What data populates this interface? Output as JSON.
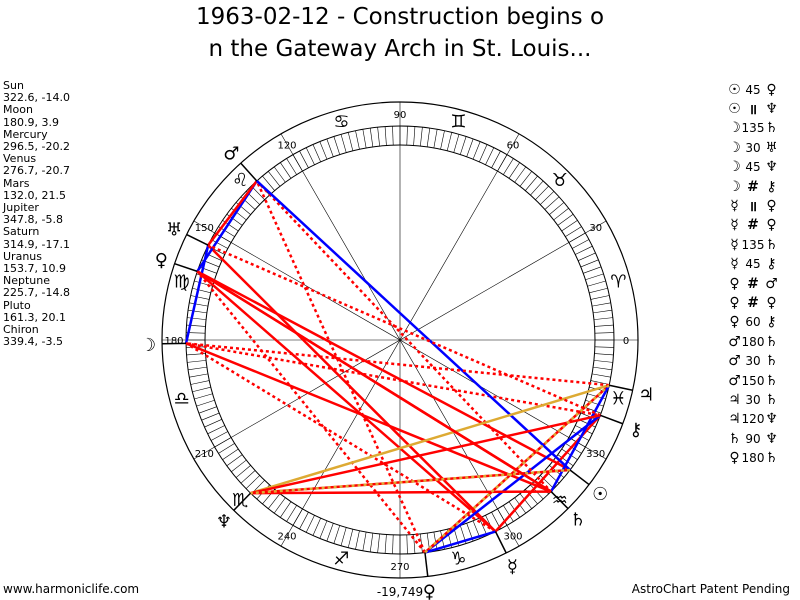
{
  "title": {
    "line1": "1963-02-12 - Construction begins o",
    "line2": "n the Gateway Arch in St. Louis..."
  },
  "planets": [
    {
      "name": "Sun",
      "position": "322.6, -14.0"
    },
    {
      "name": "Moon",
      "position": "180.9, 3.9"
    },
    {
      "name": "Mercury",
      "position": "296.5, -20.2"
    },
    {
      "name": "Venus",
      "position": "276.7, -20.7"
    },
    {
      "name": "Mars",
      "position": "132.0, 21.5"
    },
    {
      "name": "Jupiter",
      "position": "347.8, -5.8"
    },
    {
      "name": "Saturn",
      "position": "314.9, -17.1"
    },
    {
      "name": "Uranus",
      "position": "153.7, 10.9"
    },
    {
      "name": "Neptune",
      "position": "225.7, -14.8"
    },
    {
      "name": "Pluto",
      "position": "161.3, 20.1"
    },
    {
      "name": "Chiron",
      "position": "339.4, -3.5"
    }
  ],
  "aspects": [
    {
      "g1": "☉",
      "angle": "45",
      "g2": "♀"
    },
    {
      "g1": "☉",
      "angle": "॥",
      "g2": "♆"
    },
    {
      "g1": "☽",
      "angle": "135",
      "g2": "♄"
    },
    {
      "g1": "☽",
      "angle": "30",
      "g2": "♅"
    },
    {
      "g1": "☽",
      "angle": "45",
      "g2": "♆"
    },
    {
      "g1": "☽",
      "angle": "#",
      "g2": "⚷"
    },
    {
      "g1": "☿",
      "angle": "॥",
      "g2": "♀"
    },
    {
      "g1": "☿",
      "angle": "#",
      "g2": "♀"
    },
    {
      "g1": "☿",
      "angle": "135",
      "g2": "♄"
    },
    {
      "g1": "☿",
      "angle": "45",
      "g2": "⚷"
    },
    {
      "g1": "♀",
      "angle": "#",
      "g2": "♂"
    },
    {
      "g1": "♀",
      "angle": "#",
      "g2": "♀"
    },
    {
      "g1": "♀",
      "angle": "60",
      "g2": "⚷"
    },
    {
      "g1": "♂",
      "angle": "180",
      "g2": "♄"
    },
    {
      "g1": "♂",
      "angle": "30",
      "g2": "♄"
    },
    {
      "g1": "♂",
      "angle": "150",
      "g2": "♄"
    },
    {
      "g1": "♃",
      "angle": "30",
      "g2": "♄"
    },
    {
      "g1": "♃",
      "angle": "120",
      "g2": "♆"
    },
    {
      "g1": "♄",
      "angle": "90",
      "g2": "♆"
    },
    {
      "g1": "♀",
      "angle": "180",
      "g2": "♄"
    }
  ],
  "chart_data": {
    "type": "astrological-wheel",
    "degree_labels": [
      "0",
      "30",
      "60",
      "90",
      "120",
      "150",
      "180",
      "210",
      "240",
      "270",
      "300",
      "330"
    ],
    "bottom_value": "-19,749",
    "signs": [
      {
        "glyph": "♈",
        "longitude": 15
      },
      {
        "glyph": "♉",
        "longitude": 45
      },
      {
        "glyph": "♊",
        "longitude": 75
      },
      {
        "glyph": "♋",
        "longitude": 105
      },
      {
        "glyph": "♌",
        "longitude": 135
      },
      {
        "glyph": "♍",
        "longitude": 165
      },
      {
        "glyph": "♎",
        "longitude": 195
      },
      {
        "glyph": "♏",
        "longitude": 225
      },
      {
        "glyph": "♐",
        "longitude": 255
      },
      {
        "glyph": "♑",
        "longitude": 285
      },
      {
        "glyph": "♒",
        "longitude": 315
      },
      {
        "glyph": "♓",
        "longitude": 345
      }
    ],
    "bodies": [
      {
        "id": "sun",
        "glyph": "☉",
        "longitude": 322.6
      },
      {
        "id": "moon",
        "glyph": "☽",
        "longitude": 180.9
      },
      {
        "id": "mercury",
        "glyph": "☿",
        "longitude": 296.5
      },
      {
        "id": "venus",
        "glyph": "♀",
        "longitude": 276.7
      },
      {
        "id": "mars",
        "glyph": "♂",
        "longitude": 132.0
      },
      {
        "id": "jupiter",
        "glyph": "♃",
        "longitude": 347.8
      },
      {
        "id": "saturn",
        "glyph": "♄",
        "longitude": 314.9
      },
      {
        "id": "uranus",
        "glyph": "♅",
        "longitude": 153.7
      },
      {
        "id": "neptune",
        "glyph": "♆",
        "longitude": 225.7
      },
      {
        "id": "pluto",
        "glyph": "♀",
        "longitude": 161.3
      },
      {
        "id": "chiron",
        "glyph": "⚷",
        "longitude": 339.4
      }
    ],
    "aspect_lines": [
      {
        "from": "sun",
        "to": "pluto",
        "color": "#ff0000",
        "style": "solid"
      },
      {
        "from": "sun",
        "to": "neptune",
        "color": "#ff0000",
        "style": "solid"
      },
      {
        "from": "moon",
        "to": "saturn",
        "color": "#ff0000",
        "style": "solid"
      },
      {
        "from": "moon",
        "to": "uranus",
        "color": "#0000ff",
        "style": "solid"
      },
      {
        "from": "moon",
        "to": "chiron",
        "color": "#ff0000",
        "style": "dotted"
      },
      {
        "from": "mercury",
        "to": "uranus",
        "color": "#ff0000",
        "style": "solid"
      },
      {
        "from": "mercury",
        "to": "pluto",
        "color": "#ff0000",
        "style": "solid"
      },
      {
        "from": "mercury",
        "to": "chiron",
        "color": "#ff0000",
        "style": "solid"
      },
      {
        "from": "mercury",
        "to": "moon",
        "color": "#ff0000",
        "style": "dotted"
      },
      {
        "from": "venus",
        "to": "chiron",
        "color": "#0000ff",
        "style": "solid"
      },
      {
        "from": "venus",
        "to": "mars",
        "color": "#ff0000",
        "style": "dotted"
      },
      {
        "from": "venus",
        "to": "pluto",
        "color": "#ff0000",
        "style": "dotted"
      },
      {
        "from": "venus",
        "to": "jupiter",
        "color": "#ff0000",
        "style": "solid"
      },
      {
        "from": "venus",
        "to": "mercury",
        "color": "#0000ff",
        "style": "solid"
      },
      {
        "from": "mars",
        "to": "saturn",
        "color": "#ff0000",
        "style": "dotted"
      },
      {
        "from": "mars",
        "to": "pluto",
        "color": "#0000ff",
        "style": "solid"
      },
      {
        "from": "mars",
        "to": "uranus",
        "color": "#ff0000",
        "style": "solid"
      },
      {
        "from": "mars",
        "to": "sun",
        "color": "#0000ff",
        "style": "solid"
      },
      {
        "from": "jupiter",
        "to": "neptune",
        "color": "#ddaa33",
        "style": "solid"
      },
      {
        "from": "jupiter",
        "to": "moon",
        "color": "#ff0000",
        "style": "dotted"
      },
      {
        "from": "jupiter",
        "to": "saturn",
        "color": "#0000ff",
        "style": "solid"
      },
      {
        "from": "saturn",
        "to": "neptune",
        "color": "#ff0000",
        "style": "solid"
      },
      {
        "from": "saturn",
        "to": "pluto",
        "color": "#ff0000",
        "style": "solid"
      },
      {
        "from": "chiron",
        "to": "neptune",
        "color": "#ff0000",
        "style": "solid"
      },
      {
        "from": "chiron",
        "to": "uranus",
        "color": "#ff0000",
        "style": "dotted"
      },
      {
        "from": "sun",
        "to": "neptune",
        "color": "#ddaa33",
        "style": "dotted"
      },
      {
        "from": "venus",
        "to": "jupiter",
        "color": "#ddaa33",
        "style": "dotted"
      },
      {
        "from": "pluto",
        "to": "saturn",
        "color": "#ff0000",
        "style": "solid"
      }
    ]
  },
  "footer": {
    "left": "www.harmoniclife.com",
    "right": "AstroChart Patent Pending"
  }
}
